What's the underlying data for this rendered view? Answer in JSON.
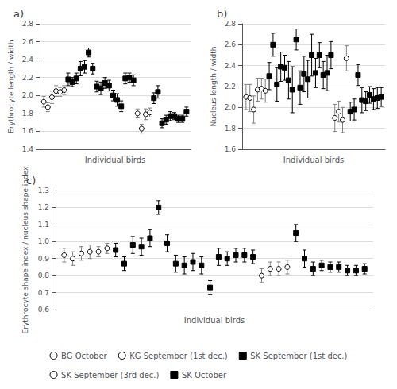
{
  "chart_data": [
    {
      "type": "scatter",
      "title": "a)",
      "xlabel": "Individual birds",
      "ylabel": "Erythrocyte length / width",
      "xlim": [
        0,
        37
      ],
      "ylim": [
        1.4,
        2.8
      ],
      "yticks": [
        1.4,
        1.6,
        1.8,
        {
          "value": 2,
          "label": "2.0"
        },
        2.2,
        2.4,
        2.6,
        2.8
      ],
      "grid": true,
      "tick_labels": "y",
      "legend": "bottom",
      "series": [
        {
          "name": "BG October",
          "marker": "circle",
          "color": "white",
          "x": [
            1,
            2
          ],
          "values": [
            1.93,
            1.87
          ],
          "yerr": [
            0.06,
            0.05
          ]
        },
        {
          "name": "KG September (1st dec.)",
          "marker": "circle",
          "color": "white",
          "x": [
            3,
            4,
            5,
            6
          ],
          "values": [
            1.98,
            2.05,
            2.04,
            2.06
          ],
          "yerr": [
            0.07,
            0.06,
            0.05,
            0.05
          ]
        },
        {
          "name": "SK September (1st dec.)",
          "marker": "square",
          "color": "black",
          "x": [
            7,
            8,
            9,
            10,
            11,
            12,
            13,
            14,
            15,
            16,
            17,
            18,
            19,
            20,
            21,
            22,
            23
          ],
          "values": [
            2.18,
            2.15,
            2.19,
            2.3,
            2.32,
            2.48,
            2.3,
            2.1,
            2.08,
            2.14,
            2.11,
            2.0,
            1.95,
            1.88,
            2.19,
            2.2,
            2.17
          ],
          "yerr": [
            0.07,
            0.05,
            0.06,
            0.08,
            0.07,
            0.05,
            0.06,
            0.06,
            0.07,
            0.06,
            0.06,
            0.06,
            0.07,
            0.06,
            0.06,
            0.05,
            0.06
          ]
        },
        {
          "name": "SK September (3rd dec.)",
          "marker": "circle",
          "color": "white",
          "x": [
            24,
            25,
            26,
            27
          ],
          "values": [
            1.8,
            1.63,
            1.79,
            1.81
          ],
          "yerr": [
            0.05,
            0.05,
            0.06,
            0.05
          ]
        },
        {
          "name": "SK October",
          "marker": "square",
          "color": "black",
          "x": [
            28,
            29,
            30,
            31,
            32,
            33,
            34,
            35,
            36
          ],
          "values": [
            1.97,
            2.04,
            1.69,
            1.73,
            1.77,
            1.77,
            1.74,
            1.74,
            1.82
          ],
          "yerr": [
            0.06,
            0.07,
            0.05,
            0.05,
            0.05,
            0.04,
            0.04,
            0.04,
            0.05
          ]
        }
      ]
    },
    {
      "type": "scatter",
      "title": "b)",
      "xlabel": "Individual birds",
      "ylabel": "Nucleus length / width",
      "xlim": [
        0,
        37
      ],
      "ylim": [
        1.6,
        2.8
      ],
      "yticks": [
        1.6,
        1.8,
        {
          "value": 2,
          "label": "2.0"
        },
        2.2,
        2.4,
        2.6,
        2.8
      ],
      "grid": true,
      "tick_labels": "y",
      "legend": "bottom",
      "series": [
        {
          "name": "BG October",
          "marker": "circle",
          "color": "white",
          "x": [
            1,
            2
          ],
          "values": [
            2.1,
            2.09
          ],
          "yerr": [
            0.12,
            0.13
          ]
        },
        {
          "name": "KG September (1st dec.)",
          "marker": "circle",
          "color": "white",
          "x": [
            3,
            4,
            5,
            6
          ],
          "values": [
            1.98,
            2.17,
            2.18,
            2.16
          ],
          "yerr": [
            0.13,
            0.11,
            0.1,
            0.11
          ]
        },
        {
          "name": "SK September (1st dec.)",
          "marker": "square",
          "color": "black",
          "x": [
            7,
            8,
            9,
            10,
            11,
            12,
            13,
            14,
            15,
            16,
            17,
            18,
            19,
            20,
            21,
            22,
            23
          ],
          "values": [
            2.3,
            2.6,
            2.22,
            2.39,
            2.38,
            2.26,
            2.17,
            2.65,
            2.19,
            2.32,
            2.27,
            2.5,
            2.33,
            2.5,
            2.31,
            2.33,
            2.5
          ],
          "yerr": [
            0.13,
            0.11,
            0.16,
            0.14,
            0.12,
            0.18,
            0.22,
            0.1,
            0.16,
            0.17,
            0.18,
            0.2,
            0.14,
            0.12,
            0.13,
            0.17,
            0.13
          ]
        },
        {
          "name": "SK September (3rd dec.)",
          "marker": "circle",
          "color": "white",
          "x": [
            24,
            25,
            26,
            27
          ],
          "values": [
            1.9,
            1.96,
            1.88,
            2.47
          ],
          "yerr": [
            0.13,
            0.1,
            0.12,
            0.12
          ]
        },
        {
          "name": "SK October",
          "marker": "square",
          "color": "black",
          "x": [
            28,
            29,
            30,
            31,
            32,
            33,
            34,
            35,
            36
          ],
          "values": [
            1.96,
            1.98,
            2.31,
            2.07,
            2.06,
            2.12,
            2.08,
            2.09,
            2.1
          ],
          "yerr": [
            0.09,
            0.1,
            0.1,
            0.12,
            0.09,
            0.08,
            0.1,
            0.1,
            0.09
          ]
        }
      ]
    },
    {
      "type": "scatter",
      "title": "c)",
      "xlabel": "Individual birds",
      "ylabel": "Erythrocyte shape index / nucleus shape index",
      "xlim": [
        0,
        37
      ],
      "ylim": [
        0.6,
        1.3
      ],
      "yticks": [
        0.6,
        0.7,
        0.8,
        0.9,
        {
          "value": 1,
          "label": "1.0"
        },
        1.1,
        1.2,
        1.3
      ],
      "grid": true,
      "tick_labels": "y",
      "legend": "bottom",
      "series": [
        {
          "name": "BG October",
          "marker": "circle",
          "color": "white",
          "x": [
            1,
            2
          ],
          "values": [
            0.92,
            0.9
          ],
          "yerr": [
            0.04,
            0.04
          ]
        },
        {
          "name": "KG September (1st dec.)",
          "marker": "circle",
          "color": "white",
          "x": [
            3,
            4,
            5,
            6
          ],
          "values": [
            0.93,
            0.94,
            0.94,
            0.96
          ],
          "yerr": [
            0.04,
            0.04,
            0.03,
            0.03
          ]
        },
        {
          "name": "SK September (1st dec.)",
          "marker": "square",
          "color": "black",
          "x": [
            7,
            8,
            9,
            10,
            11,
            12,
            13,
            14,
            15,
            16,
            17,
            18,
            19,
            20,
            21,
            22,
            23
          ],
          "values": [
            0.95,
            0.87,
            0.98,
            0.97,
            1.02,
            1.2,
            0.99,
            0.87,
            0.86,
            0.88,
            0.86,
            0.73,
            0.91,
            0.9,
            0.92,
            0.92,
            0.91
          ],
          "yerr": [
            0.04,
            0.04,
            0.05,
            0.05,
            0.05,
            0.04,
            0.05,
            0.05,
            0.05,
            0.05,
            0.05,
            0.04,
            0.05,
            0.04,
            0.04,
            0.04,
            0.04
          ]
        },
        {
          "name": "SK September (3rd dec.)",
          "marker": "circle",
          "color": "white",
          "x": [
            24,
            25,
            26,
            27
          ],
          "values": [
            0.8,
            0.84,
            0.84,
            0.85
          ],
          "yerr": [
            0.04,
            0.04,
            0.04,
            0.04
          ]
        },
        {
          "name": "SK October",
          "marker": "square",
          "color": "black",
          "x": [
            28,
            29,
            30,
            31,
            32,
            33,
            34,
            35,
            36
          ],
          "values": [
            1.05,
            0.9,
            0.84,
            0.86,
            0.85,
            0.85,
            0.83,
            0.83,
            0.84
          ],
          "yerr": [
            0.05,
            0.05,
            0.04,
            0.03,
            0.03,
            0.03,
            0.03,
            0.03,
            0.03
          ]
        }
      ]
    }
  ]
}
